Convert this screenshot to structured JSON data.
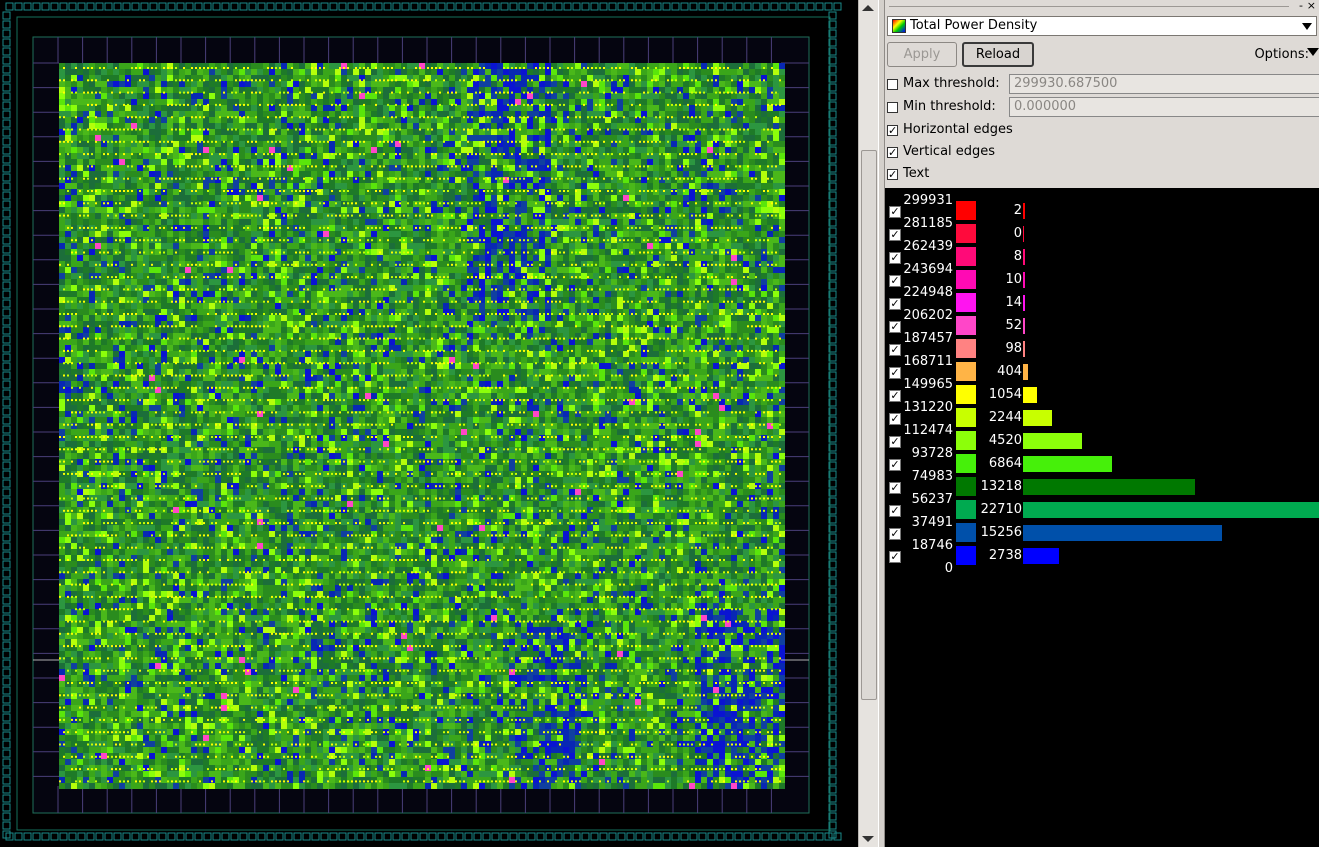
{
  "panel": {
    "title_buttons": {
      "float": "-",
      "close": "×"
    },
    "map_selector": {
      "value": "Total Power Density",
      "icon": "heatmap-icon"
    },
    "apply_label": "Apply",
    "reload_label": "Reload",
    "options_label": "Options:",
    "max_threshold": {
      "label": "Max threshold:",
      "value": "299930.687500",
      "checked": false
    },
    "min_threshold": {
      "label": "Min threshold:",
      "value": "0.000000",
      "checked": false
    },
    "horizontal_edges": {
      "label": "Horizontal edges",
      "checked": true
    },
    "vertical_edges": {
      "label": "Vertical edges",
      "checked": true
    },
    "text": {
      "label": "Text",
      "checked": true
    },
    "check_mark": "✓"
  },
  "legend": {
    "thresholds": [
      "299931",
      "281185",
      "262439",
      "243694",
      "224948",
      "206202",
      "187457",
      "168711",
      "149965",
      "131220",
      "112474",
      "93728",
      "74983",
      "56237",
      "37491",
      "18746",
      "0"
    ],
    "bins": [
      {
        "count": 2,
        "color": "#ff0000"
      },
      {
        "count": 0,
        "color": "#ff0a3c"
      },
      {
        "count": 8,
        "color": "#ff0a78"
      },
      {
        "count": 10,
        "color": "#ff0ab4"
      },
      {
        "count": 14,
        "color": "#ff14f0"
      },
      {
        "count": 52,
        "color": "#ff46c8"
      },
      {
        "count": 98,
        "color": "#ff8282"
      },
      {
        "count": 404,
        "color": "#ffb446"
      },
      {
        "count": 1054,
        "color": "#ffff00"
      },
      {
        "count": 2244,
        "color": "#c8ff00"
      },
      {
        "count": 4520,
        "color": "#8cff0a"
      },
      {
        "count": 6864,
        "color": "#46f00a"
      },
      {
        "count": 13218,
        "color": "#007800"
      },
      {
        "count": 22710,
        "color": "#00aa50"
      },
      {
        "count": 15256,
        "color": "#0050aa"
      },
      {
        "count": 2738,
        "color": "#0000ff"
      }
    ],
    "max_count": 22710
  }
}
